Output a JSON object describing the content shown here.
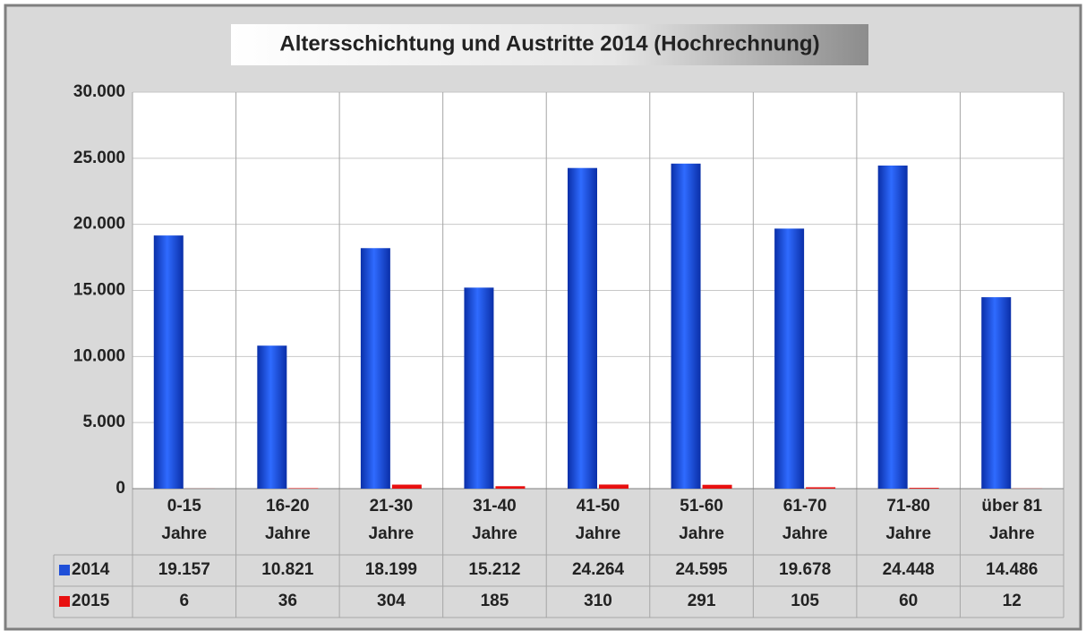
{
  "chart_data": {
    "type": "bar",
    "title": "Altersschichtung und Austritte 2014 (Hochrechnung)",
    "categories": [
      "0-15\nJahre",
      "16-20\nJahre",
      "21-30\nJahre",
      "31-40\nJahre",
      "41-50\nJahre",
      "51-60\nJahre",
      "61-70\nJahre",
      "71-80\nJahre",
      "über 81\nJahre"
    ],
    "series": [
      {
        "name": "2014",
        "color": "#1f4fd8",
        "values": [
          19157,
          10821,
          18199,
          15212,
          24264,
          24595,
          19678,
          24448,
          14486
        ],
        "value_labels": [
          "19.157",
          "10.821",
          "18.199",
          "15.212",
          "24.264",
          "24.595",
          "19.678",
          "24.448",
          "14.486"
        ]
      },
      {
        "name": "2015",
        "color": "#e81010",
        "values": [
          6,
          36,
          304,
          185,
          310,
          291,
          105,
          60,
          12
        ],
        "value_labels": [
          "6",
          "36",
          "304",
          "185",
          "310",
          "291",
          "105",
          "60",
          "12"
        ]
      }
    ],
    "ylim": [
      0,
      30000
    ],
    "yticks": [
      0,
      {
        "value": 5000,
        "label": "5.000"
      },
      {
        "value": 10000,
        "label": "10.000"
      },
      {
        "value": 15000,
        "label": "15.000"
      },
      {
        "value": 20000,
        "label": "20.000"
      },
      {
        "value": 25000,
        "label": "25.000"
      },
      {
        "value": 30000,
        "label": "30.000"
      }
    ],
    "grid": true
  }
}
